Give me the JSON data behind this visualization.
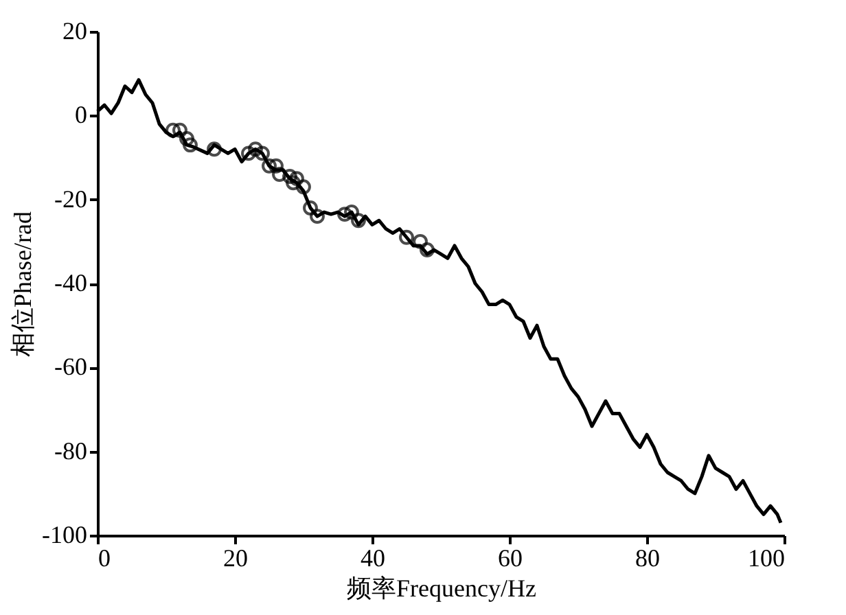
{
  "chart_data": {
    "type": "line",
    "xlabel": "频率Frequency/Hz",
    "ylabel": "相位Phase/rad",
    "xlim": [
      0,
      100
    ],
    "xticks": [
      0,
      20,
      40,
      60,
      80,
      100
    ],
    "ylim": [
      -100,
      20
    ],
    "yticks": [
      -100,
      -80,
      -60,
      -40,
      -20,
      0,
      20
    ],
    "grid": false,
    "series": [
      {
        "color": "#000000",
        "marker": "none",
        "x": [
          0,
          1,
          2,
          3,
          4,
          5,
          6,
          7,
          8,
          9,
          10,
          11,
          12,
          13,
          14,
          16,
          17,
          18,
          19,
          20,
          21,
          22,
          23,
          24,
          25,
          26,
          27,
          28,
          29,
          30,
          31,
          32,
          33,
          34,
          35,
          36,
          37,
          38,
          39,
          40,
          41,
          42,
          43,
          44,
          45,
          46,
          47,
          48,
          49,
          50,
          51,
          52,
          53,
          54,
          55,
          56,
          57,
          58,
          59,
          60,
          61,
          62,
          63,
          64,
          65,
          66,
          67,
          68,
          69,
          70,
          71,
          72,
          73,
          74,
          75,
          76,
          77,
          78,
          79,
          80,
          81,
          82,
          83,
          84,
          85,
          86,
          87,
          88,
          89,
          90,
          91,
          92,
          93,
          94,
          95,
          96,
          97,
          98,
          99,
          99.5
        ],
        "values": [
          1,
          2.5,
          0.5,
          3,
          7,
          5.5,
          8.5,
          5,
          3,
          -2,
          -4,
          -5,
          -4,
          -7,
          -7.5,
          -9,
          -7,
          -8,
          -9,
          -8,
          -11,
          -9,
          -8,
          -9,
          -12,
          -13,
          -13,
          -15,
          -16,
          -18,
          -22,
          -24,
          -23,
          -23.5,
          -23,
          -24,
          -23,
          -26,
          -24,
          -26,
          -25,
          -27,
          -28,
          -27,
          -29,
          -31,
          -31,
          -33,
          -32,
          -33,
          -34,
          -31,
          -34,
          -36,
          -40,
          -42,
          -45,
          -45,
          -44,
          -45,
          -48,
          -49,
          -53,
          -50,
          -55,
          -58,
          -58,
          -62,
          -65,
          -67,
          -70,
          -74,
          -71,
          -68,
          -71,
          -71,
          -74,
          -77,
          -79,
          -76,
          -79,
          -83,
          -85,
          -86,
          -87,
          -89,
          -90,
          -86,
          -81,
          -84,
          -85,
          -86,
          -89,
          -87,
          -90,
          -93,
          -95,
          -93,
          -95,
          -97
        ]
      },
      {
        "type": "scatter",
        "color": "#000000",
        "marker": "circle",
        "x": [
          11,
          12,
          13,
          13.5,
          17,
          22,
          23,
          24,
          25,
          26,
          26.5,
          28,
          28.5,
          29,
          30,
          31,
          32,
          36,
          37,
          38,
          45,
          47,
          48
        ],
        "values": [
          -3.5,
          -3.5,
          -5.5,
          -7,
          -8,
          -9,
          -8,
          -9,
          -12,
          -12,
          -14,
          -14.5,
          -16,
          -15,
          -17,
          -22,
          -24,
          -23.5,
          -23,
          -25,
          -29,
          -30,
          -32
        ]
      }
    ]
  }
}
